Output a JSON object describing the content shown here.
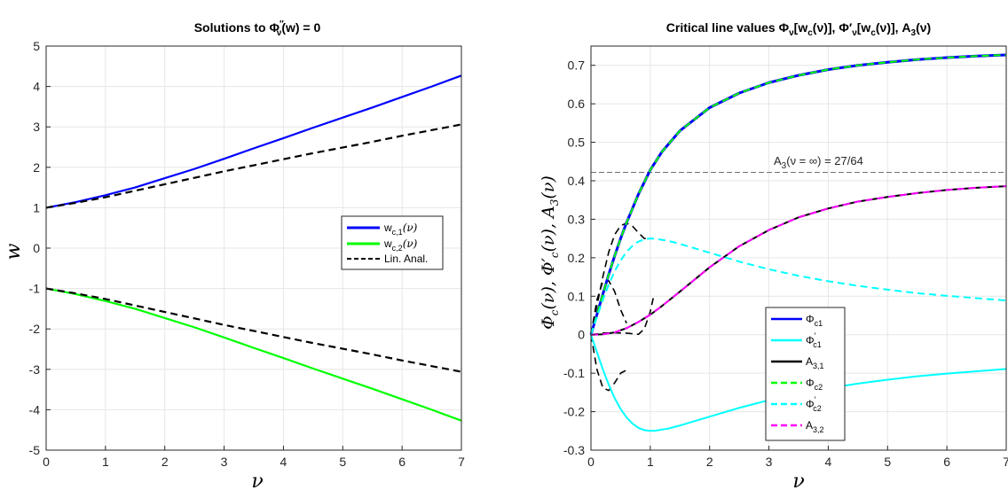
{
  "chart_data": [
    {
      "type": "line",
      "title": "Solutions to Φ″_ν(w) = 0",
      "title_parts": {
        "pre": "Solutions to Φ",
        "sup": "′′",
        "sub": "ν",
        "post": "(w) = 0"
      },
      "xlabel": "ν",
      "ylabel": "w",
      "xlim": [
        0,
        7
      ],
      "ylim": [
        -5,
        5
      ],
      "xticks": [
        0,
        1,
        2,
        3,
        4,
        5,
        6,
        7
      ],
      "yticks": [
        -5,
        -4,
        -3,
        -2,
        -1,
        0,
        1,
        2,
        3,
        4,
        5
      ],
      "grid": true,
      "legend_position": "right-middle",
      "legend_entries": [
        {
          "base": "w",
          "sub": "c,1",
          "post": "(ν)"
        },
        {
          "base": "w",
          "sub": "c,2",
          "post": "(ν)"
        },
        {
          "base": "Lin. Anal.",
          "sub": "",
          "post": ""
        }
      ],
      "series": [
        {
          "name": "w_c,1(ν)",
          "color": "#0000ff",
          "dash": "solid",
          "x": [
            0,
            0.5,
            1,
            1.5,
            2,
            2.5,
            3,
            3.5,
            4,
            4.5,
            5,
            5.5,
            6,
            6.5,
            7
          ],
          "y": [
            1,
            1.14,
            1.31,
            1.5,
            1.73,
            1.96,
            2.21,
            2.47,
            2.72,
            2.98,
            3.23,
            3.48,
            3.74,
            4.0,
            4.27
          ]
        },
        {
          "name": "w_c,2(ν)",
          "color": "#00ff00",
          "dash": "solid",
          "x": [
            0,
            0.5,
            1,
            1.5,
            2,
            2.5,
            3,
            3.5,
            4,
            4.5,
            5,
            5.5,
            6,
            6.5,
            7
          ],
          "y": [
            -1,
            -1.14,
            -1.31,
            -1.5,
            -1.73,
            -1.96,
            -2.21,
            -2.47,
            -2.72,
            -2.98,
            -3.23,
            -3.48,
            -3.74,
            -4.0,
            -4.27
          ]
        },
        {
          "name": "Lin. Anal. (+)",
          "color": "#000000",
          "dash": "dashed",
          "x": [
            0,
            0.5,
            1,
            1.5,
            2,
            2.5,
            3,
            3.5,
            4,
            4.5,
            5,
            5.5,
            6,
            6.5,
            7
          ],
          "y": [
            1,
            1.12,
            1.26,
            1.42,
            1.58,
            1.74,
            1.9,
            2.05,
            2.2,
            2.35,
            2.49,
            2.63,
            2.78,
            2.92,
            3.06
          ]
        },
        {
          "name": "Lin. Anal. (−)",
          "color": "#000000",
          "dash": "dashed",
          "x": [
            0,
            0.5,
            1,
            1.5,
            2,
            2.5,
            3,
            3.5,
            4,
            4.5,
            5,
            5.5,
            6,
            6.5,
            7
          ],
          "y": [
            -1,
            -1.12,
            -1.26,
            -1.42,
            -1.58,
            -1.74,
            -1.9,
            -2.05,
            -2.2,
            -2.35,
            -2.49,
            -2.63,
            -2.78,
            -2.92,
            -3.06
          ]
        }
      ]
    },
    {
      "type": "line",
      "title": "Critical line values Φ_ν[w_c(ν)], Φ′_ν[w_c(ν)], A_3(ν)",
      "title_parts": {
        "t1": "Critical line values Φ",
        "s1": "ν",
        "t2": "[w",
        "s2": "c",
        "t3": "(ν)], Φ′",
        "s3": "ν",
        "t4": "[w",
        "s4": "c",
        "t5": "(ν)], A",
        "s5": "3",
        "t6": "(ν)"
      },
      "xlabel": "ν",
      "ylabel": "Φc(ν), Φ′c(ν), A3(ν)",
      "ylabel_parts": {
        "a": "Φ",
        "as": "c",
        "b": "(ν), Φ′",
        "bs": "c",
        "c": "(ν), A",
        "cs": "3",
        "d": "(ν)"
      },
      "xlim": [
        0,
        7
      ],
      "ylim": [
        -0.3,
        0.75
      ],
      "xticks": [
        0,
        1,
        2,
        3,
        4,
        5,
        6,
        7
      ],
      "yticks": [
        -0.3,
        -0.2,
        -0.1,
        0,
        0.1,
        0.2,
        0.3,
        0.4,
        0.5,
        0.6,
        0.7
      ],
      "grid": true,
      "annotation": {
        "text_pre": "A",
        "text_sub": "3",
        "text_post": "(ν = ∞) = 27/64",
        "y": 0.421875
      },
      "legend_position": "bottom-center",
      "legend_entries": [
        {
          "base": "Φ",
          "sub": "c1",
          "prime": false
        },
        {
          "base": "Φ",
          "sub": "c1",
          "prime": true
        },
        {
          "base": "A",
          "sub": "3,1",
          "prime": false
        },
        {
          "base": "Φ",
          "sub": "c2",
          "prime": false
        },
        {
          "base": "Φ",
          "sub": "c2",
          "prime": true
        },
        {
          "base": "A",
          "sub": "3,2",
          "prime": false
        }
      ],
      "series": [
        {
          "name": "Φc1",
          "color": "#0000ff",
          "dash": "solid",
          "width": 3,
          "x": [
            0,
            0.1,
            0.2,
            0.3,
            0.4,
            0.5,
            0.6,
            0.8,
            1.0,
            1.2,
            1.5,
            2.0,
            2.5,
            3.0,
            3.5,
            4.0,
            4.5,
            5.0,
            5.5,
            6.0,
            6.5,
            7.0
          ],
          "y": [
            0,
            0.052,
            0.105,
            0.157,
            0.205,
            0.25,
            0.291,
            0.365,
            0.428,
            0.476,
            0.53,
            0.59,
            0.628,
            0.655,
            0.674,
            0.689,
            0.7,
            0.708,
            0.715,
            0.72,
            0.724,
            0.727
          ]
        },
        {
          "name": "Φ′c1",
          "color": "#00ffff",
          "dash": "solid",
          "width": 2,
          "x": [
            0,
            0.1,
            0.2,
            0.3,
            0.4,
            0.5,
            0.6,
            0.7,
            0.8,
            0.9,
            1.0,
            1.1,
            1.3,
            1.5,
            2.0,
            2.5,
            3.0,
            3.5,
            4.0,
            4.5,
            5.0,
            5.5,
            6.0,
            6.5,
            7.0
          ],
          "y": [
            0,
            -0.045,
            -0.09,
            -0.13,
            -0.165,
            -0.193,
            -0.215,
            -0.231,
            -0.242,
            -0.248,
            -0.25,
            -0.249,
            -0.244,
            -0.236,
            -0.213,
            -0.19,
            -0.17,
            -0.153,
            -0.139,
            -0.127,
            -0.117,
            -0.108,
            -0.101,
            -0.095,
            -0.089
          ]
        },
        {
          "name": "A3,1",
          "color": "#000000",
          "dash": "solid",
          "width": 2,
          "x": [
            0,
            0.2,
            0.4,
            0.6,
            0.8,
            1.0,
            1.2,
            1.5,
            2.0,
            2.5,
            3.0,
            3.5,
            4.0,
            4.5,
            5.0,
            5.5,
            6.0,
            6.5,
            7.0
          ],
          "y": [
            0,
            0.001,
            0.006,
            0.017,
            0.033,
            0.052,
            0.075,
            0.112,
            0.175,
            0.23,
            0.272,
            0.305,
            0.328,
            0.346,
            0.358,
            0.368,
            0.376,
            0.382,
            0.386
          ]
        },
        {
          "name": "Φc2",
          "color": "#00ff00",
          "dash": "dashed",
          "width": 2,
          "x": [
            0,
            0.1,
            0.2,
            0.3,
            0.4,
            0.5,
            0.6,
            0.8,
            1.0,
            1.2,
            1.5,
            2.0,
            2.5,
            3.0,
            3.5,
            4.0,
            4.5,
            5.0,
            5.5,
            6.0,
            6.5,
            7.0
          ],
          "y": [
            0,
            0.052,
            0.105,
            0.157,
            0.205,
            0.25,
            0.291,
            0.365,
            0.428,
            0.476,
            0.53,
            0.59,
            0.628,
            0.655,
            0.674,
            0.689,
            0.7,
            0.708,
            0.715,
            0.72,
            0.724,
            0.727
          ]
        },
        {
          "name": "Φ′c2",
          "color": "#00ffff",
          "dash": "dashed",
          "width": 2,
          "x": [
            0,
            0.1,
            0.2,
            0.3,
            0.4,
            0.5,
            0.6,
            0.7,
            0.8,
            0.9,
            1.0,
            1.1,
            1.3,
            1.5,
            2.0,
            2.5,
            3.0,
            3.5,
            4.0,
            4.5,
            5.0,
            5.5,
            6.0,
            6.5,
            7.0
          ],
          "y": [
            0,
            0.045,
            0.09,
            0.13,
            0.165,
            0.193,
            0.215,
            0.231,
            0.242,
            0.248,
            0.25,
            0.249,
            0.244,
            0.236,
            0.213,
            0.19,
            0.17,
            0.153,
            0.139,
            0.127,
            0.117,
            0.108,
            0.101,
            0.095,
            0.089
          ]
        },
        {
          "name": "A3,2",
          "color": "#ff00ff",
          "dash": "dashed",
          "width": 2,
          "x": [
            0,
            0.2,
            0.4,
            0.6,
            0.8,
            1.0,
            1.2,
            1.5,
            2.0,
            2.5,
            3.0,
            3.5,
            4.0,
            4.5,
            5.0,
            5.5,
            6.0,
            6.5,
            7.0
          ],
          "y": [
            0,
            0.001,
            0.006,
            0.017,
            0.033,
            0.052,
            0.075,
            0.112,
            0.175,
            0.23,
            0.272,
            0.305,
            0.328,
            0.346,
            0.358,
            0.368,
            0.376,
            0.382,
            0.386
          ]
        },
        {
          "name": "Lin. Anal. Φc",
          "color": "#000000",
          "dash": "dashed",
          "width": 1.6,
          "legend": false,
          "x": [
            0,
            0.1,
            0.2,
            0.3,
            0.4,
            0.5,
            0.6,
            0.7,
            0.8,
            0.9,
            1.0
          ],
          "y": [
            0,
            0.075,
            0.15,
            0.215,
            0.26,
            0.283,
            0.29,
            0.282,
            0.265,
            0.25,
            0.248
          ]
        },
        {
          "name": "Lin. Anal. Φ′c (+)",
          "color": "#000000",
          "dash": "dashed",
          "width": 1.6,
          "legend": false,
          "x": [
            0,
            0.1,
            0.2,
            0.3,
            0.4,
            0.5,
            0.6
          ],
          "y": [
            0,
            0.09,
            0.138,
            0.14,
            0.112,
            0.065,
            0.03
          ]
        },
        {
          "name": "Lin. Anal. Φ′c (−)",
          "color": "#000000",
          "dash": "dashed",
          "width": 1.6,
          "legend": false,
          "x": [
            0,
            0.1,
            0.2,
            0.3,
            0.4,
            0.5,
            0.6
          ],
          "y": [
            0,
            -0.09,
            -0.138,
            -0.145,
            -0.125,
            -0.1,
            -0.092
          ]
        },
        {
          "name": "Lin. Anal. A3",
          "color": "#000000",
          "dash": "dashed",
          "width": 1.6,
          "legend": false,
          "x": [
            0,
            0.2,
            0.4,
            0.6,
            0.8,
            0.9,
            1.0,
            1.05
          ],
          "y": [
            0,
            0.004,
            0.005,
            0.004,
            0.001,
            0.015,
            0.06,
            0.095
          ]
        },
        {
          "name": "A3 asymptote",
          "color": "#707070",
          "dash": "dashed",
          "width": 1,
          "legend": false,
          "x": [
            0,
            7
          ],
          "y": [
            0.421875,
            0.421875
          ]
        }
      ]
    }
  ]
}
